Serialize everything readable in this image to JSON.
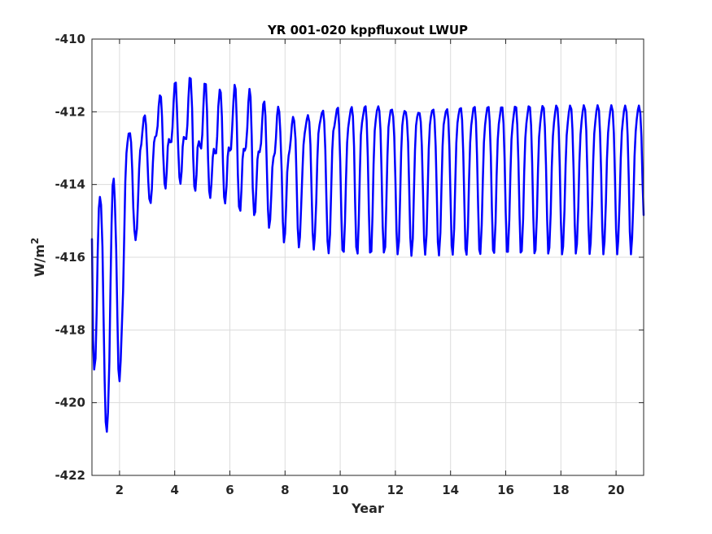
{
  "chart_data": {
    "type": "line",
    "title": "YR 001-020 kppfluxout LWUP",
    "xlabel": "Year",
    "ylabel_base": "W/m",
    "ylabel_sup": "2",
    "xlim": [
      1,
      21
    ],
    "ylim": [
      -422,
      -410
    ],
    "xticks": [
      2,
      4,
      6,
      8,
      10,
      12,
      14,
      16,
      18,
      20
    ],
    "yticks": [
      -422,
      -420,
      -418,
      -416,
      -414,
      -412,
      -410
    ],
    "grid": true,
    "line_color": "#0000ff",
    "series": [
      {
        "x": [
          1.0,
          1.04,
          1.08,
          1.13,
          1.17,
          1.21,
          1.25,
          1.29,
          1.33,
          1.38,
          1.42,
          1.46,
          1.5,
          1.54,
          1.58,
          1.63,
          1.67,
          1.71,
          1.75,
          1.79,
          1.83,
          1.88,
          1.92,
          1.96,
          2.0,
          2.04,
          2.08,
          2.13,
          2.17,
          2.21,
          2.25,
          2.29,
          2.33,
          2.38,
          2.42,
          2.46,
          2.5,
          2.54,
          2.58,
          2.63,
          2.67,
          2.71,
          2.75,
          2.79,
          2.83,
          2.88,
          2.92,
          2.96,
          3.0,
          3.04,
          3.08,
          3.13,
          3.17,
          3.21,
          3.25,
          3.29,
          3.33,
          3.38,
          3.42,
          3.46,
          3.5,
          3.54,
          3.58,
          3.63,
          3.67,
          3.71,
          3.75,
          3.79,
          3.83,
          3.88,
          3.92,
          3.96,
          4.0,
          4.04,
          4.08,
          4.13,
          4.17,
          4.21,
          4.25,
          4.29,
          4.33,
          4.38,
          4.42,
          4.46,
          4.5,
          4.54,
          4.58,
          4.63,
          4.67,
          4.71,
          4.75,
          4.79,
          4.83,
          4.88,
          4.92,
          4.96,
          5.0,
          5.04,
          5.08,
          5.13,
          5.17,
          5.21,
          5.25,
          5.29,
          5.33,
          5.38,
          5.42,
          5.46,
          5.5,
          5.54,
          5.58,
          5.63,
          5.67,
          5.71,
          5.75,
          5.79,
          5.83,
          5.88,
          5.92,
          5.96,
          6.0,
          6.04,
          6.08,
          6.13,
          6.17,
          6.21,
          6.25,
          6.29,
          6.33,
          6.38,
          6.42,
          6.46,
          6.5,
          6.54,
          6.58,
          6.63,
          6.67,
          6.71,
          6.75,
          6.79,
          6.83,
          6.88,
          6.92,
          6.96,
          7.0,
          7.04,
          7.08,
          7.13,
          7.17,
          7.21,
          7.25,
          7.29,
          7.33,
          7.38,
          7.42,
          7.46,
          7.5,
          7.54,
          7.58,
          7.63,
          7.67,
          7.71,
          7.75,
          7.79,
          7.83,
          7.88,
          7.92,
          7.96,
          8.0,
          8.04,
          8.08,
          8.13,
          8.17,
          8.21,
          8.25,
          8.29,
          8.33,
          8.38,
          8.42,
          8.46,
          8.5,
          8.54,
          8.58,
          8.63,
          8.67,
          8.71,
          8.75,
          8.79,
          8.83,
          8.88,
          8.92,
          8.96,
          9.0,
          9.04,
          9.08,
          9.13,
          9.17,
          9.21,
          9.25,
          9.29,
          9.33,
          9.38,
          9.42,
          9.46,
          9.5,
          9.54,
          9.58,
          9.63,
          9.67,
          9.71,
          9.75,
          9.79,
          9.83,
          9.88,
          9.92,
          9.96,
          10.0,
          10.04,
          10.08,
          10.13,
          10.17,
          10.21,
          10.25,
          10.29,
          10.33,
          10.38,
          10.42,
          10.46,
          10.5,
          10.54,
          10.58,
          10.63,
          10.67,
          10.71,
          10.75,
          10.79,
          10.83,
          10.88,
          10.92,
          10.96,
          11.0,
          11.04,
          11.08,
          11.13,
          11.17,
          11.21,
          11.25,
          11.29,
          11.33,
          11.38,
          11.42,
          11.46,
          11.5,
          11.54,
          11.58,
          11.63,
          11.67,
          11.71,
          11.75,
          11.79,
          11.83,
          11.88,
          11.92,
          11.96,
          12.0,
          12.04,
          12.08,
          12.13,
          12.17,
          12.21,
          12.25,
          12.29,
          12.33,
          12.38,
          12.42,
          12.46,
          12.5,
          12.54,
          12.58,
          12.63,
          12.67,
          12.71,
          12.75,
          12.79,
          12.83,
          12.88,
          12.92,
          12.96,
          13.0,
          13.04,
          13.08,
          13.13,
          13.17,
          13.21,
          13.25,
          13.29,
          13.33,
          13.38,
          13.42,
          13.46,
          13.5,
          13.54,
          13.58,
          13.63,
          13.67,
          13.71,
          13.75,
          13.79,
          13.83,
          13.88,
          13.92,
          13.96,
          14.0,
          14.04,
          14.08,
          14.13,
          14.17,
          14.21,
          14.25,
          14.29,
          14.33,
          14.38,
          14.42,
          14.46,
          14.5,
          14.54,
          14.58,
          14.63,
          14.67,
          14.71,
          14.75,
          14.79,
          14.83,
          14.88,
          14.92,
          14.96,
          15.0,
          15.04,
          15.08,
          15.13,
          15.17,
          15.21,
          15.25,
          15.29,
          15.33,
          15.38,
          15.42,
          15.46,
          15.5,
          15.54,
          15.58,
          15.63,
          15.67,
          15.71,
          15.75,
          15.79,
          15.83,
          15.88,
          15.92,
          15.96,
          16.0,
          16.04,
          16.08,
          16.13,
          16.17,
          16.21,
          16.25,
          16.29,
          16.33,
          16.38,
          16.42,
          16.46,
          16.5,
          16.54,
          16.58,
          16.63,
          16.67,
          16.71,
          16.75,
          16.79,
          16.83,
          16.88,
          16.92,
          16.96,
          17.0,
          17.04,
          17.08,
          17.13,
          17.17,
          17.21,
          17.25,
          17.29,
          17.33,
          17.38,
          17.42,
          17.46,
          17.5,
          17.54,
          17.58,
          17.63,
          17.67,
          17.71,
          17.75,
          17.79,
          17.83,
          17.88,
          17.92,
          17.96,
          18.0,
          18.04,
          18.08,
          18.13,
          18.17,
          18.21,
          18.25,
          18.29,
          18.33,
          18.38,
          18.42,
          18.46,
          18.5,
          18.54,
          18.58,
          18.63,
          18.67,
          18.71,
          18.75,
          18.79,
          18.83,
          18.88,
          18.92,
          18.96,
          19.0,
          19.04,
          19.08,
          19.13,
          19.17,
          19.21,
          19.25,
          19.29,
          19.33,
          19.38,
          19.42,
          19.46,
          19.5,
          19.54,
          19.58,
          19.63,
          19.67,
          19.71,
          19.75,
          19.79,
          19.83,
          19.88,
          19.92,
          19.96,
          20.0,
          20.04,
          20.08,
          20.13,
          20.17,
          20.21,
          20.25,
          20.29,
          20.33,
          20.38,
          20.42,
          20.46,
          20.5,
          20.54,
          20.58,
          20.63,
          20.67,
          20.71,
          20.75,
          20.79,
          20.83,
          20.88,
          20.92,
          20.96,
          21.0
        ],
        "y": [
          -415.5,
          -418.29,
          -419.09,
          -418.78,
          -417.51,
          -415.84,
          -414.65,
          -414.34,
          -414.56,
          -415.71,
          -417.56,
          -419.38,
          -420.53,
          -420.8,
          -420.27,
          -418.87,
          -416.92,
          -415.09,
          -414.03,
          -413.84,
          -414.43,
          -415.79,
          -417.57,
          -419.08,
          -419.41,
          -418.85,
          -418.02,
          -416.93,
          -415.38,
          -413.92,
          -413.14,
          -412.84,
          -412.6,
          -412.59,
          -412.84,
          -413.59,
          -414.63,
          -415.26,
          -415.53,
          -415.21,
          -414.46,
          -413.56,
          -413.06,
          -412.89,
          -412.55,
          -412.16,
          -412.1,
          -412.36,
          -413.08,
          -413.9,
          -414.39,
          -414.51,
          -414.13,
          -413.4,
          -412.84,
          -412.69,
          -412.66,
          -412.39,
          -411.86,
          -411.55,
          -411.59,
          -412.13,
          -413.15,
          -413.97,
          -414.11,
          -413.65,
          -412.96,
          -412.75,
          -412.84,
          -412.83,
          -412.43,
          -411.75,
          -411.22,
          -411.2,
          -411.88,
          -413.05,
          -413.8,
          -413.98,
          -413.64,
          -412.96,
          -412.69,
          -412.74,
          -412.75,
          -412.36,
          -411.62,
          -411.07,
          -411.09,
          -411.91,
          -413.24,
          -414.05,
          -414.17,
          -413.73,
          -412.98,
          -412.81,
          -412.95,
          -413.01,
          -412.63,
          -411.83,
          -411.23,
          -411.24,
          -411.98,
          -413.29,
          -414.18,
          -414.37,
          -413.99,
          -413.25,
          -413.02,
          -413.14,
          -413.14,
          -412.68,
          -411.85,
          -411.39,
          -411.47,
          -412.14,
          -413.41,
          -414.34,
          -414.52,
          -414.04,
          -413.24,
          -412.98,
          -413.07,
          -413.03,
          -412.51,
          -411.71,
          -411.26,
          -411.38,
          -412.29,
          -413.7,
          -414.61,
          -414.72,
          -414.15,
          -413.3,
          -413.02,
          -413.07,
          -412.97,
          -412.45,
          -411.75,
          -411.37,
          -411.59,
          -412.65,
          -414.1,
          -414.84,
          -414.75,
          -414.08,
          -413.31,
          -413.09,
          -413.11,
          -412.87,
          -412.27,
          -411.79,
          -411.72,
          -412.12,
          -413.25,
          -414.67,
          -415.19,
          -414.97,
          -414.29,
          -413.53,
          -413.25,
          -413.13,
          -412.74,
          -412.11,
          -411.86,
          -412.0,
          -412.55,
          -413.65,
          -415.02,
          -415.59,
          -415.35,
          -414.56,
          -413.66,
          -413.21,
          -413.03,
          -412.75,
          -412.34,
          -412.14,
          -412.25,
          -412.76,
          -413.89,
          -415.2,
          -415.73,
          -415.45,
          -414.66,
          -413.62,
          -412.91,
          -412.6,
          -412.41,
          -412.2,
          -412.09,
          -412.28,
          -412.91,
          -414.08,
          -415.31,
          -415.79,
          -415.44,
          -414.5,
          -413.31,
          -412.6,
          -412.36,
          -412.21,
          -412.04,
          -411.97,
          -412.26,
          -413.05,
          -414.35,
          -415.56,
          -415.89,
          -415.37,
          -414.25,
          -413.07,
          -412.53,
          -412.39,
          -412.19,
          -411.93,
          -411.89,
          -412.35,
          -413.36,
          -414.81,
          -415.8,
          -415.85,
          -415.06,
          -413.88,
          -412.85,
          -412.44,
          -412.2,
          -411.94,
          -411.87,
          -412.12,
          -412.95,
          -414.47,
          -415.72,
          -415.9,
          -415.08,
          -413.72,
          -412.64,
          -412.3,
          -412.11,
          -411.88,
          -411.85,
          -412.24,
          -413.24,
          -414.79,
          -415.87,
          -415.84,
          -414.84,
          -413.44,
          -412.52,
          -412.22,
          -411.97,
          -411.85,
          -411.97,
          -412.5,
          -413.64,
          -415.15,
          -415.87,
          -415.72,
          -414.59,
          -413.25,
          -412.42,
          -412.16,
          -411.96,
          -411.94,
          -412.14,
          -412.69,
          -413.84,
          -415.28,
          -415.92,
          -415.56,
          -414.39,
          -413.12,
          -412.38,
          -412.13,
          -411.98,
          -412.01,
          -412.24,
          -412.83,
          -414.03,
          -415.44,
          -415.96,
          -415.49,
          -414.28,
          -413.06,
          -412.38,
          -412.14,
          -412.03,
          -412.04,
          -412.28,
          -412.94,
          -414.18,
          -415.52,
          -415.93,
          -415.38,
          -414.19,
          -413.02,
          -412.37,
          -412.13,
          -411.97,
          -411.94,
          -412.21,
          -412.95,
          -414.26,
          -415.59,
          -415.95,
          -415.33,
          -414.11,
          -412.95,
          -412.36,
          -412.16,
          -411.99,
          -411.93,
          -412.21,
          -413.03,
          -414.4,
          -415.68,
          -415.93,
          -415.22,
          -413.96,
          -412.86,
          -412.31,
          -412.09,
          -411.92,
          -411.9,
          -412.23,
          -413.12,
          -414.54,
          -415.77,
          -415.93,
          -415.17,
          -413.9,
          -412.85,
          -412.38,
          -412.13,
          -411.9,
          -411.87,
          -412.26,
          -413.18,
          -414.6,
          -415.79,
          -415.91,
          -415.12,
          -413.86,
          -412.84,
          -412.37,
          -412.11,
          -411.89,
          -411.87,
          -412.27,
          -413.21,
          -414.66,
          -415.8,
          -415.88,
          -415.05,
          -413.77,
          -412.77,
          -412.34,
          -412.1,
          -411.88,
          -411.88,
          -412.32,
          -413.3,
          -414.77,
          -415.85,
          -415.85,
          -414.97,
          -413.69,
          -412.75,
          -412.35,
          -412.09,
          -411.86,
          -411.88,
          -412.36,
          -413.37,
          -414.84,
          -415.87,
          -415.83,
          -414.94,
          -413.66,
          -412.72,
          -412.32,
          -412.06,
          -411.85,
          -411.88,
          -412.38,
          -413.41,
          -414.89,
          -415.89,
          -415.8,
          -414.86,
          -413.58,
          -412.69,
          -412.31,
          -412.04,
          -411.84,
          -411.9,
          -412.42,
          -413.48,
          -414.96,
          -415.9,
          -415.74,
          -414.77,
          -413.52,
          -412.67,
          -412.3,
          -412.02,
          -411.83,
          -411.91,
          -412.45,
          -413.53,
          -415.03,
          -415.92,
          -415.71,
          -414.71,
          -413.46,
          -412.65,
          -412.29,
          -412.01,
          -411.83,
          -411.93,
          -412.49,
          -413.59,
          -415.07,
          -415.9,
          -415.64,
          -414.62,
          -413.41,
          -412.63,
          -412.27,
          -411.99,
          -411.82,
          -411.94,
          -412.52,
          -413.64,
          -415.12,
          -415.91,
          -415.61,
          -414.56,
          -413.36,
          -412.6,
          -412.25,
          -411.98,
          -411.82,
          -411.96,
          -412.57,
          -413.71,
          -415.18,
          -415.92,
          -415.57,
          -414.5,
          -413.31,
          -412.58,
          -412.24,
          -411.97,
          -411.82,
          -411.98,
          -412.6,
          -413.76,
          -415.23,
          -415.92,
          -415.52,
          -414.44,
          -413.27,
          -412.56,
          -412.22,
          -411.96,
          -411.83,
          -412.01,
          -412.65,
          -413.83,
          -415.29,
          -415.92,
          -415.48,
          -414.38,
          -413.23,
          -412.55,
          -412.21,
          -411.95,
          -411.83,
          -412.03,
          -412.69,
          -413.89,
          -414.84
        ]
      }
    ]
  }
}
